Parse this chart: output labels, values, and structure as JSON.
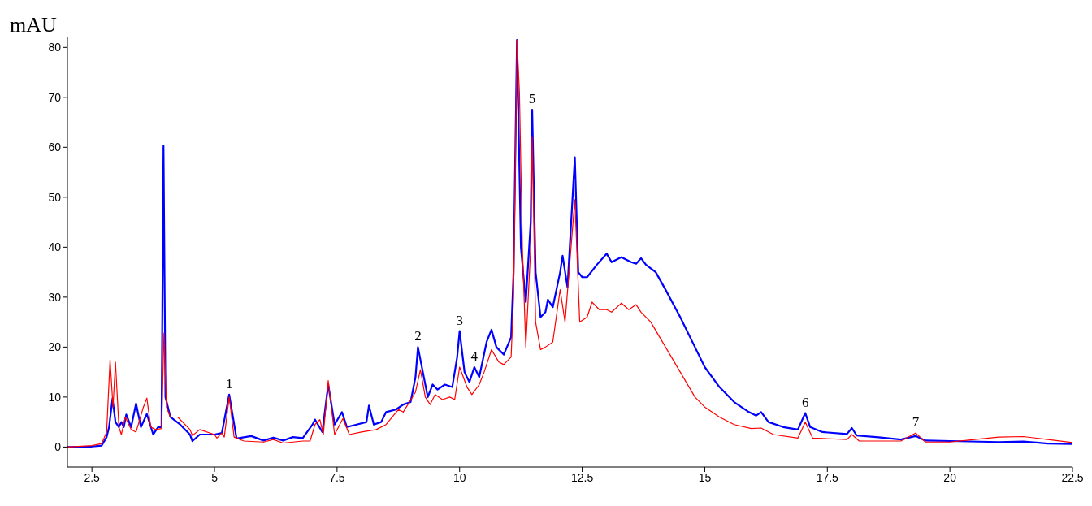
{
  "chart_data": {
    "type": "line",
    "ylabel": "mAU",
    "xlim": [
      2,
      22.5
    ],
    "ylim": [
      -4,
      82
    ],
    "xticks": [
      2.5,
      5,
      7.5,
      10,
      12.5,
      15,
      17.5,
      20,
      22.5
    ],
    "yticks": [
      0,
      10,
      20,
      30,
      40,
      50,
      60,
      70,
      80
    ],
    "marker": "none",
    "line_style": "solid",
    "series": [
      {
        "color": "#0000ff",
        "x": [
          2.0,
          2.5,
          2.7,
          2.8,
          2.85,
          2.92,
          2.98,
          3.05,
          3.1,
          3.15,
          3.2,
          3.3,
          3.4,
          3.5,
          3.62,
          3.75,
          3.85,
          3.92,
          3.96,
          4.0,
          4.1,
          4.3,
          4.5,
          4.55,
          4.7,
          5.0,
          5.15,
          5.3,
          5.45,
          5.75,
          6.0,
          6.2,
          6.4,
          6.6,
          6.8,
          7.0,
          7.05,
          7.2,
          7.32,
          7.45,
          7.6,
          7.7,
          7.9,
          8.1,
          8.15,
          8.25,
          8.4,
          8.5,
          8.7,
          8.85,
          9.0,
          9.1,
          9.15,
          9.25,
          9.35,
          9.45,
          9.55,
          9.7,
          9.85,
          9.95,
          10.0,
          10.1,
          10.2,
          10.3,
          10.4,
          10.55,
          10.65,
          10.75,
          10.9,
          11.05,
          11.1,
          11.17,
          11.25,
          11.35,
          11.45,
          11.48,
          11.55,
          11.65,
          11.75,
          11.8,
          11.9,
          12.05,
          12.1,
          12.2,
          12.35,
          12.42,
          12.5,
          12.6,
          12.8,
          13.0,
          13.1,
          13.3,
          13.5,
          13.6,
          13.7,
          13.8,
          14.0,
          14.2,
          14.5,
          14.8,
          15.0,
          15.3,
          15.6,
          15.9,
          16.05,
          16.15,
          16.3,
          16.6,
          16.9,
          17.05,
          17.15,
          17.4,
          17.9,
          18.0,
          18.1,
          18.5,
          19.0,
          19.3,
          19.5,
          20.0,
          21.0,
          21.5,
          22.0,
          22.5
        ],
        "values": [
          0,
          0.1,
          0.3,
          2,
          4,
          9.7,
          5,
          4,
          5,
          4,
          6.5,
          4,
          8.7,
          4,
          6.6,
          2.5,
          4,
          4,
          60.3,
          10,
          6,
          4.5,
          2.5,
          1.2,
          2.5,
          2.5,
          2.8,
          10.5,
          1.7,
          2.2,
          1.3,
          1.9,
          1.3,
          2.0,
          1.8,
          4.5,
          5.5,
          3,
          12.5,
          4.5,
          7,
          4,
          4.5,
          5,
          8.3,
          4.5,
          5,
          7,
          7.5,
          8.5,
          9,
          14,
          20,
          15,
          10,
          12.5,
          11.5,
          12.5,
          12,
          18,
          23.2,
          15,
          13,
          16,
          14,
          21,
          23.5,
          20,
          18.5,
          22,
          35,
          81.5,
          40,
          29,
          45,
          67.5,
          35,
          26,
          27,
          29.5,
          28,
          35,
          38.3,
          32,
          58,
          35,
          34,
          34,
          36.5,
          38.7,
          37,
          38,
          37,
          36.7,
          37.8,
          36.5,
          35,
          31.5,
          26,
          20,
          16,
          12,
          9,
          7,
          6.3,
          7,
          5,
          4,
          3.5,
          6.8,
          4,
          3,
          2.6,
          3.8,
          2.3,
          2,
          1.5,
          2.2,
          1.3,
          1.2,
          1.0,
          1.1,
          0.7,
          0.6
        ]
      },
      {
        "color": "#ff0000",
        "x": [
          2.0,
          2.5,
          2.7,
          2.8,
          2.87,
          2.93,
          2.98,
          3.05,
          3.1,
          3.18,
          3.3,
          3.4,
          3.55,
          3.62,
          3.7,
          3.8,
          3.92,
          3.97,
          4.02,
          4.1,
          4.25,
          4.5,
          4.55,
          4.7,
          5.0,
          5.05,
          5.15,
          5.2,
          5.3,
          5.4,
          5.6,
          6.0,
          6.2,
          6.4,
          6.8,
          6.95,
          7.05,
          7.15,
          7.22,
          7.32,
          7.45,
          7.62,
          7.75,
          8.0,
          8.3,
          8.5,
          8.75,
          8.85,
          9.1,
          9.2,
          9.3,
          9.4,
          9.5,
          9.65,
          9.8,
          9.9,
          10.0,
          10.15,
          10.25,
          10.4,
          10.5,
          10.65,
          10.8,
          10.9,
          11.05,
          11.1,
          11.17,
          11.22,
          11.28,
          11.35,
          11.45,
          11.48,
          11.55,
          11.65,
          11.75,
          11.9,
          12.05,
          12.15,
          12.35,
          12.45,
          12.6,
          12.7,
          12.85,
          13.0,
          13.1,
          13.3,
          13.45,
          13.6,
          13.7,
          13.9,
          14.2,
          14.5,
          14.8,
          15.0,
          15.3,
          15.6,
          15.95,
          16.15,
          16.4,
          16.9,
          17.05,
          17.2,
          17.9,
          18.0,
          18.15,
          19.0,
          19.3,
          19.5,
          20.0,
          20.5,
          21.0,
          21.5,
          22.0,
          22.5
        ],
        "values": [
          0,
          0.3,
          0.7,
          3,
          17.5,
          8,
          17,
          4,
          2.5,
          6,
          3.5,
          3,
          8,
          9.8,
          4,
          3.5,
          3.7,
          22.8,
          8,
          6,
          6,
          3.5,
          2.3,
          3.5,
          2.5,
          1.8,
          2.8,
          2,
          10,
          2,
          1.2,
          1,
          1.5,
          0.8,
          1.2,
          1.2,
          4.5,
          5.5,
          2.5,
          13.3,
          2.5,
          5.7,
          2.5,
          3,
          3.5,
          4.5,
          7.5,
          7,
          11,
          15.5,
          10,
          8.5,
          10.5,
          9.5,
          10,
          9.5,
          16,
          12,
          10.5,
          12.5,
          15,
          19.5,
          17,
          16.5,
          18,
          30,
          81.5,
          71,
          40,
          20,
          40,
          62,
          25,
          19.5,
          20,
          21,
          31.5,
          25,
          49.5,
          25,
          26,
          29,
          27.5,
          27.5,
          27,
          28.8,
          27.5,
          28.5,
          27,
          25,
          20,
          15,
          10,
          8,
          6,
          4.5,
          3.7,
          3.8,
          2.5,
          1.8,
          5,
          1.8,
          1.5,
          2.5,
          1.2,
          1.2,
          2.8,
          1,
          1,
          1.5,
          2,
          2.1,
          1.5,
          0.9
        ]
      }
    ],
    "annotations": [
      {
        "text": "1",
        "x": 5.3,
        "y": 10.5
      },
      {
        "text": "2",
        "x": 9.15,
        "y": 20
      },
      {
        "text": "3",
        "x": 10.0,
        "y": 23.2
      },
      {
        "text": "4",
        "x": 10.3,
        "y": 16
      },
      {
        "text": "5",
        "x": 11.48,
        "y": 67.5
      },
      {
        "text": "6",
        "x": 17.05,
        "y": 6.8
      },
      {
        "text": "7",
        "x": 19.3,
        "y": 2.8
      }
    ]
  }
}
